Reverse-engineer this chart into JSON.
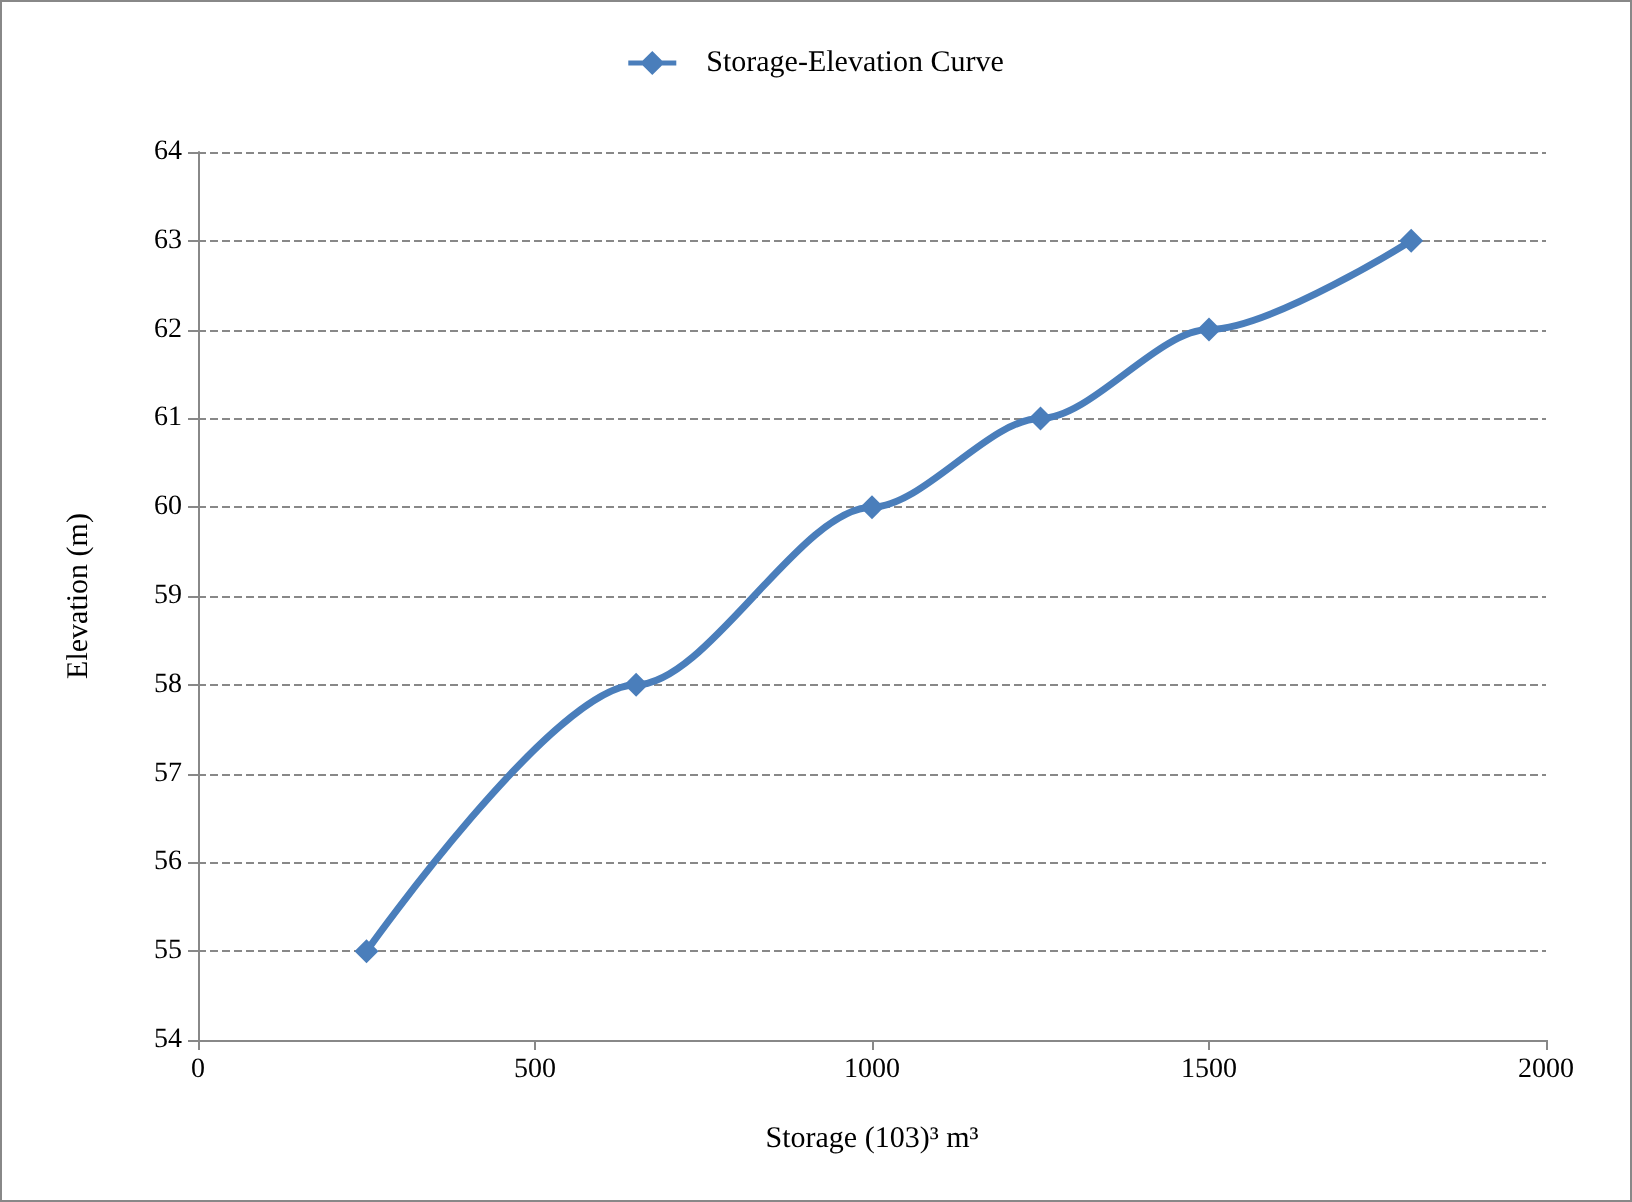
{
  "chart_data": {
    "type": "line",
    "xlabel": "Storage (103)³ m³",
    "ylabel": "Elevation (m)",
    "x": [
      250,
      650,
      1000,
      1250,
      1500,
      1800
    ],
    "series": [
      {
        "name": "Storage-Elevation Curve",
        "color": "#4a7ebb",
        "values": [
          55,
          58,
          60,
          61,
          62,
          63
        ]
      }
    ],
    "xlim": [
      0,
      2000
    ],
    "xticks": [
      0,
      500,
      1000,
      1500,
      2000
    ],
    "ylim": [
      54,
      64
    ],
    "yticks": [
      54,
      55,
      56,
      57,
      58,
      59,
      60,
      61,
      62,
      63,
      64
    ],
    "grid": "y",
    "legend": "top",
    "marker": "diamond",
    "line_style": "solid"
  }
}
